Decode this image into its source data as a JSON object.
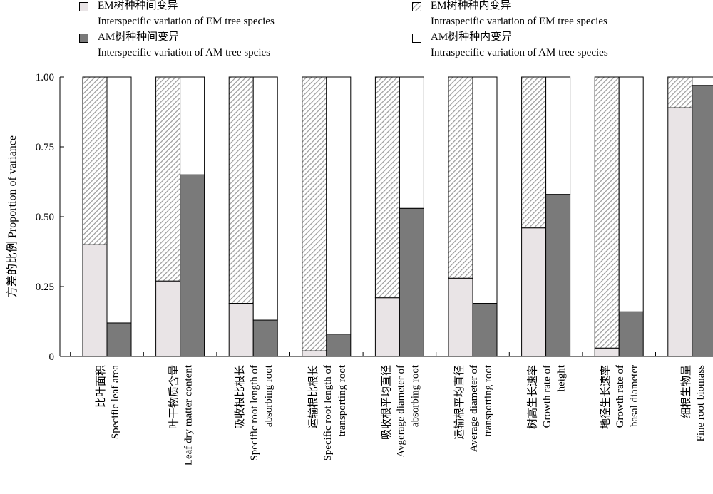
{
  "colors": {
    "em_inter": "#e9e4e6",
    "am_inter": "#7a7a7a",
    "em_intra_hatch": "#9a9a9a",
    "am_intra": "#ffffff",
    "axis": "#000000"
  },
  "legend": {
    "position": "top",
    "items": [
      {
        "key": "em_inter",
        "zh": "EM树种种间变异",
        "en": "Interspecific variation of EM tree species"
      },
      {
        "key": "am_inter",
        "zh": "AM树种种间变异",
        "en": "Interspecific variation of AM tree spcies"
      },
      {
        "key": "em_intra",
        "zh": "EM树种种内变异",
        "en": "Intraspecific variation of EM tree species"
      },
      {
        "key": "am_intra",
        "zh": "AM树种种内变异",
        "en": "Intraspecific variation of AM tree species"
      }
    ]
  },
  "chart_data": {
    "type": "bar",
    "stacked": true,
    "ylabel": "方差的比例 Proportion of variance",
    "ylim": [
      0,
      1
    ],
    "yticks": [
      "0",
      "0.25",
      "0.50",
      "0.75",
      "1.00"
    ],
    "ytick_values": [
      0,
      0.25,
      0.5,
      0.75,
      1.0
    ],
    "grid": false,
    "categories": [
      {
        "zh": "比叶面积",
        "en": [
          "Specific leaf area"
        ]
      },
      {
        "zh": "叶干物质含量",
        "en": [
          "Leaf dry matter content"
        ]
      },
      {
        "zh": "吸收根比根长",
        "en": [
          "Specific root length of",
          "absorbing root"
        ]
      },
      {
        "zh": "运输根比根长",
        "en": [
          "Specific root length of",
          "transporting root"
        ]
      },
      {
        "zh": "吸收根平均直径",
        "en": [
          "Avgerage diameter of",
          "absorbing root"
        ]
      },
      {
        "zh": "运输根平均直径",
        "en": [
          "Average diameter of",
          "transporting root"
        ]
      },
      {
        "zh": "树高生长速率",
        "en": [
          "Growth rate of",
          "height"
        ]
      },
      {
        "zh": "地径生长速率",
        "en": [
          "Growth rate of",
          "basal diameter"
        ]
      },
      {
        "zh": "细根生物量",
        "en": [
          "Fine root biomass"
        ]
      }
    ],
    "series": [
      {
        "name": "EM树种种间变异 Interspecific variation of EM tree species",
        "group": "EM",
        "values": [
          0.4,
          0.27,
          0.19,
          0.02,
          0.21,
          0.28,
          0.46,
          0.03,
          0.89
        ]
      },
      {
        "name": "EM树种种内变异 Intraspecific variation of EM tree species",
        "group": "EM",
        "values": [
          0.6,
          0.73,
          0.81,
          0.98,
          0.79,
          0.72,
          0.54,
          0.97,
          0.11
        ]
      },
      {
        "name": "AM树种种间变异 Interspecific variation of AM tree spcies",
        "group": "AM",
        "values": [
          0.12,
          0.65,
          0.13,
          0.08,
          0.53,
          0.19,
          0.58,
          0.16,
          0.97
        ]
      },
      {
        "name": "AM树种种内变异 Intraspecific variation of AM tree species",
        "group": "AM",
        "values": [
          0.88,
          0.35,
          0.87,
          0.92,
          0.47,
          0.81,
          0.42,
          0.84,
          0.03
        ]
      }
    ]
  }
}
